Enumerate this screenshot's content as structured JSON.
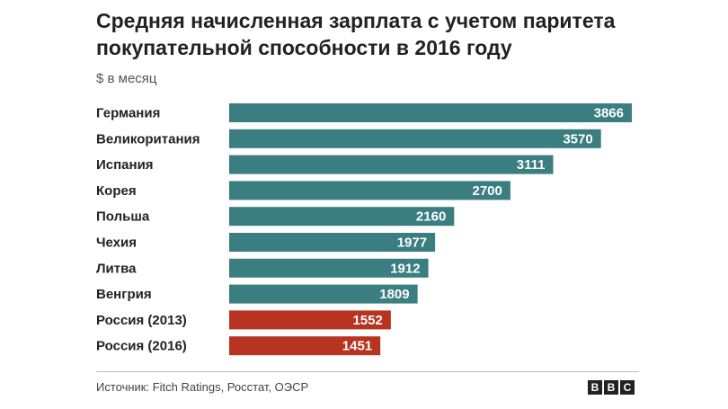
{
  "chart_data": {
    "type": "bar",
    "orientation": "horizontal",
    "title": "Средняя начисленная зарплата с учетом паритета покупательной способности в 2016 году",
    "subtitle": "$ в месяц",
    "categories": [
      "Германия",
      "Великоритания",
      "Испания",
      "Корея",
      "Польша",
      "Чехия",
      "Литва",
      "Венгрия",
      "Россия (2013)",
      "Россия (2016)"
    ],
    "values": [
      3866,
      3570,
      3111,
      2700,
      2160,
      1977,
      1912,
      1809,
      1552,
      1451
    ],
    "xlim": [
      0,
      3866
    ],
    "grid": false,
    "colors": {
      "default": "#3a7e81",
      "highlight": "#b73421"
    },
    "highlighted_categories": [
      "Россия (2013)",
      "Россия (2016)"
    ],
    "data_labels": true
  },
  "footer": {
    "source": "Источник: Fitch Ratings, Росстат, ОЭСР",
    "logo_letters": [
      "B",
      "B",
      "C"
    ]
  }
}
